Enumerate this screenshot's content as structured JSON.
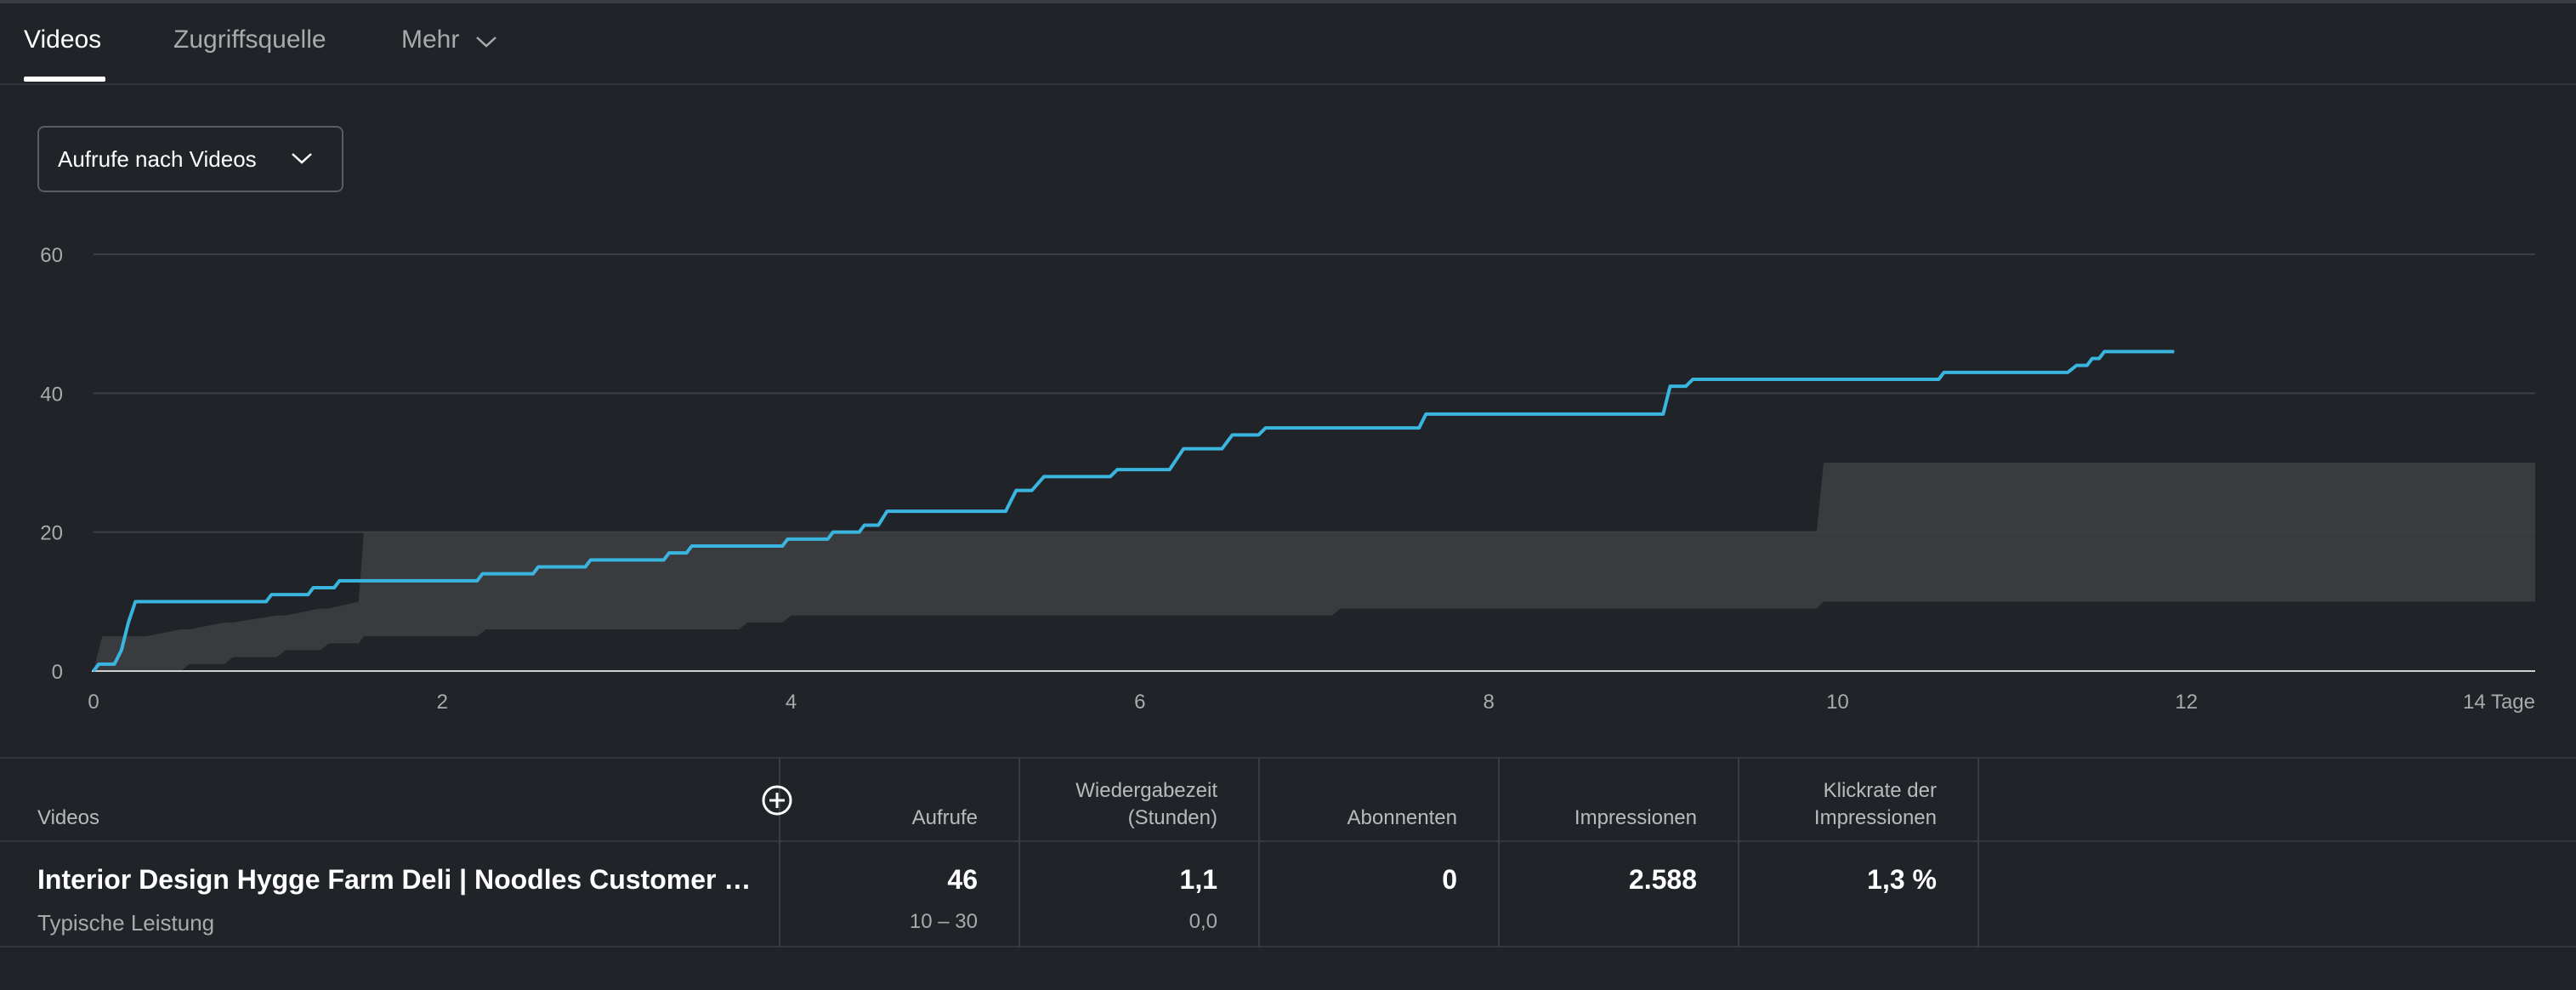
{
  "tabs": [
    {
      "label": "Videos",
      "active": true
    },
    {
      "label": "Zugriffsquelle",
      "active": false
    },
    {
      "label": "Mehr",
      "active": false
    }
  ],
  "dropdown": {
    "label": "Aufrufe nach Videos",
    "icon": "chevron-down-icon"
  },
  "colors": {
    "line": "#3ab5e0",
    "band": "#393b3e",
    "grid": "#3c3f43",
    "axis": "#d0d0d0"
  },
  "chart_data": {
    "type": "line",
    "xlabel": "",
    "ylabel": "",
    "x_tick_labels": [
      "0",
      "2",
      "4",
      "6",
      "8",
      "10",
      "12",
      "14 Tage"
    ],
    "x_ticks": [
      0,
      2,
      4,
      6,
      8,
      10,
      12,
      14
    ],
    "y_ticks": [
      0,
      20,
      40,
      60
    ],
    "xlim": [
      0,
      14
    ],
    "ylim": [
      0,
      60
    ],
    "grid": true,
    "series": [
      {
        "values_x": [
          0,
          0.03,
          0.12,
          0.16,
          0.2,
          0.24,
          0.99,
          1.02,
          1.23,
          1.26,
          1.38,
          1.41,
          2.2,
          2.23,
          2.52,
          2.55,
          2.82,
          2.85,
          3.27,
          3.3,
          3.4,
          3.43,
          3.52,
          3.55,
          3.95,
          3.98,
          4.21,
          4.24,
          4.39,
          4.42,
          4.5,
          4.55,
          5.23,
          5.29,
          5.38,
          5.45,
          5.83,
          5.87,
          6.17,
          6.25,
          6.47,
          6.53,
          6.68,
          6.72,
          7.6,
          7.64,
          9.0,
          9.04,
          9.13,
          9.17,
          10.58,
          10.61,
          11.32,
          11.37,
          11.43,
          11.46,
          11.5,
          11.53,
          11.93
        ],
        "values_y": [
          0,
          1,
          1,
          3,
          7,
          10,
          10,
          11,
          11,
          12,
          12,
          13,
          13,
          14,
          14,
          15,
          15,
          16,
          16,
          17,
          17,
          18,
          18,
          18,
          18,
          19,
          19,
          20,
          20,
          21,
          21,
          23,
          23,
          26,
          26,
          28,
          28,
          29,
          29,
          32,
          32,
          34,
          34,
          35,
          35,
          37,
          37,
          41,
          41,
          42,
          42,
          43,
          43,
          44,
          44,
          45,
          45,
          46,
          46
        ]
      }
    ],
    "typical_range": {
      "x": [
        0,
        0.05,
        0.3,
        0.5,
        0.55,
        0.75,
        0.8,
        1.05,
        1.1,
        1.3,
        1.35,
        1.52,
        1.55,
        2.2,
        2.25,
        3.7,
        3.75,
        3.95,
        4.0,
        7.1,
        7.15,
        9.88,
        9.92,
        14.0
      ],
      "low": [
        0,
        0,
        0,
        0,
        1,
        1,
        2,
        2,
        3,
        3,
        4,
        4,
        5,
        5,
        6,
        6,
        7,
        7,
        8,
        8,
        9,
        9,
        10,
        10
      ],
      "high": [
        0,
        5,
        5,
        6,
        6,
        7,
        7,
        8,
        8,
        9,
        9,
        10,
        20,
        20,
        20,
        20,
        20,
        20,
        20,
        20,
        20,
        20,
        30,
        30
      ]
    }
  },
  "table": {
    "headers": {
      "videos": "Videos",
      "aufrufe": "Aufrufe",
      "wiedergabezeit_1": "Wiedergabezeit",
      "wiedergabezeit_2": "(Stunden)",
      "abonnenten": "Abonnenten",
      "impressionen": "Impressionen",
      "klickrate_1": "Klickrate der",
      "klickrate_2": "Impressionen"
    },
    "row": {
      "title": "Interior Design Hygge Farm Deli | Noodles Customer Story | By Naho",
      "subtitle": "Typische Leistung",
      "aufrufe": "46",
      "aufrufe_typical": "10 – 30",
      "wiedergabezeit": "1,1",
      "wiedergabezeit_typical": "0,0",
      "abonnenten": "0",
      "impressionen": "2.588",
      "klickrate": "1,3 %"
    }
  }
}
